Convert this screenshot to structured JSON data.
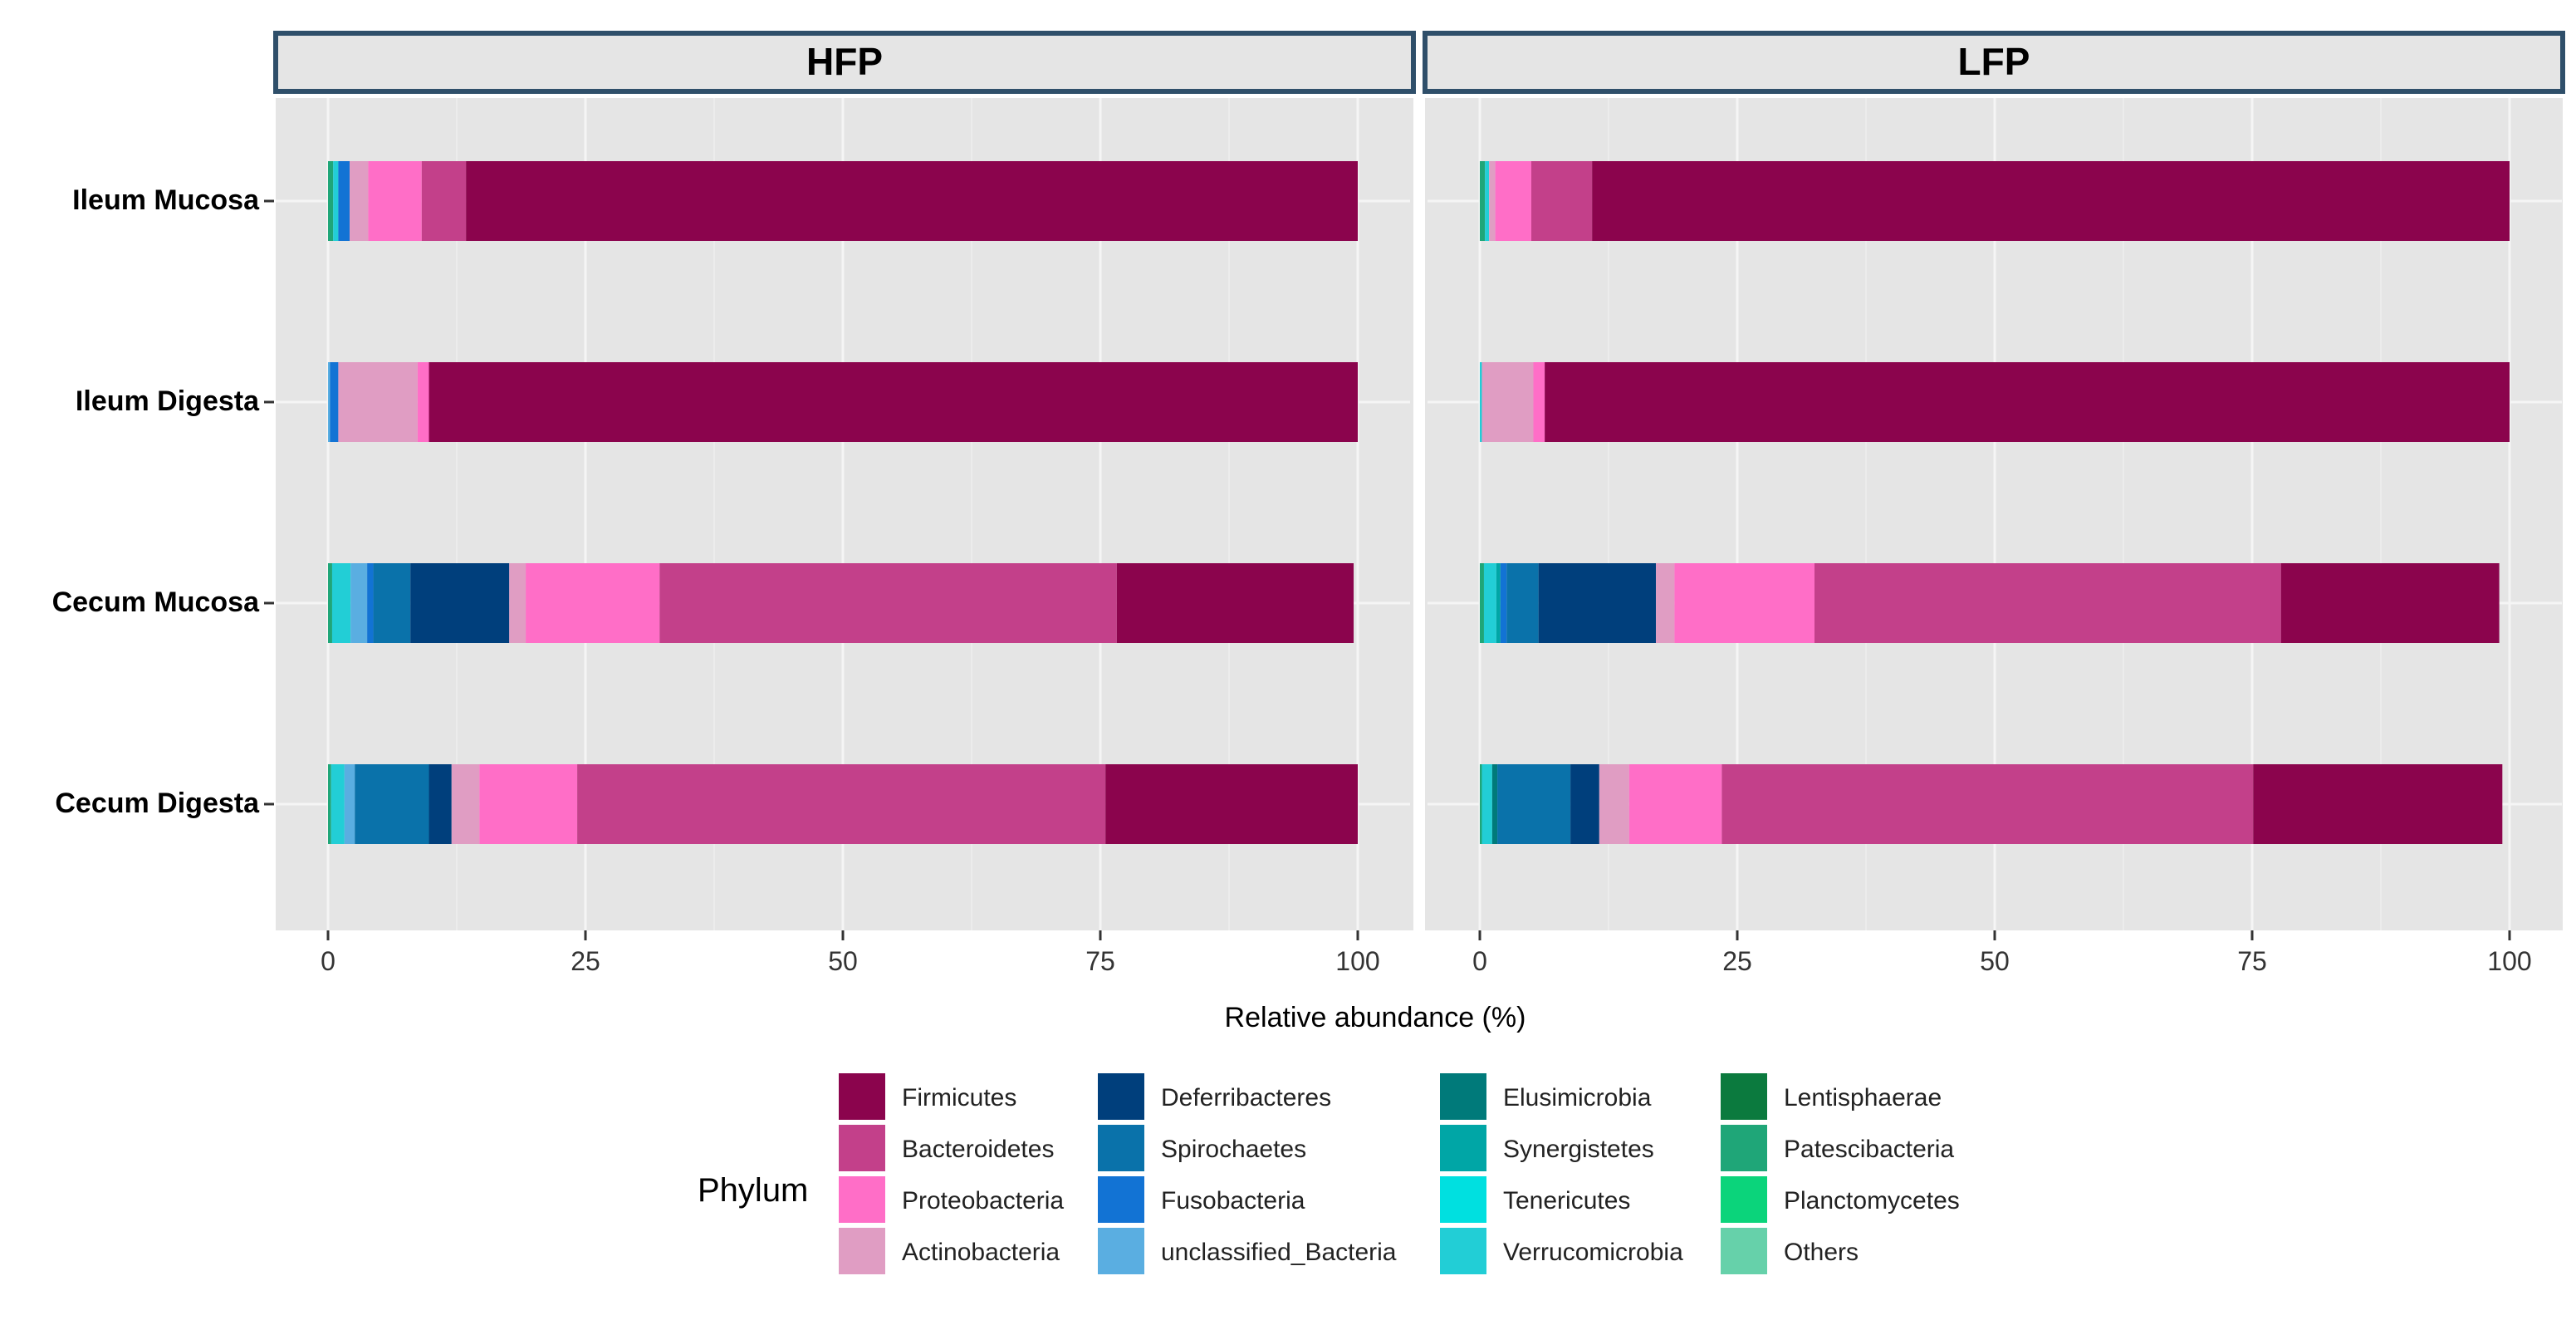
{
  "chart_data": {
    "type": "bar",
    "orientation": "horizontal",
    "stacked": true,
    "facets": [
      "HFP",
      "LFP"
    ],
    "categories": [
      "Ileum Mucosa",
      "Ileum Digesta",
      "Cecum Mucosa",
      "Cecum Digesta"
    ],
    "xlabel": "Relative abundance (%)",
    "xlim": [
      0,
      100
    ],
    "xticks": [
      0,
      25,
      50,
      75,
      100
    ],
    "legend_title": "Phylum",
    "legend_position": "bottom",
    "series": [
      {
        "name": "Firmicutes",
        "color": "#8B044D",
        "HFP": [
          86.6,
          90.2,
          23.0,
          24.5
        ],
        "LFP": [
          89.1,
          93.7,
          21.2,
          24.2
        ]
      },
      {
        "name": "Bacteroidetes",
        "color": "#C3408A",
        "HFP": [
          4.3,
          0.0,
          44.4,
          51.3
        ],
        "LFP": [
          5.9,
          0.0,
          45.3,
          51.6
        ]
      },
      {
        "name": "Proteobacteria",
        "color": "#FF6EC7",
        "HFP": [
          5.2,
          1.1,
          13.0,
          9.5
        ],
        "LFP": [
          3.5,
          1.1,
          13.6,
          9.0
        ]
      },
      {
        "name": "Actinobacteria",
        "color": "#E09DC3",
        "HFP": [
          1.8,
          7.7,
          1.6,
          2.7
        ],
        "LFP": [
          0.6,
          5.0,
          1.8,
          2.9
        ]
      },
      {
        "name": "Deferribacteres",
        "color": "#003F7C",
        "HFP": [
          0.0,
          0.0,
          9.6,
          2.2
        ],
        "LFP": [
          0.0,
          0.0,
          11.4,
          2.8
        ]
      },
      {
        "name": "Spirochaetes",
        "color": "#0A72AA",
        "HFP": [
          0.0,
          0.0,
          3.6,
          7.2
        ],
        "LFP": [
          0.0,
          0.0,
          3.1,
          7.1
        ]
      },
      {
        "name": "Fusobacteria",
        "color": "#1273D4",
        "HFP": [
          1.1,
          0.8,
          0.6,
          0.0
        ],
        "LFP": [
          0.0,
          0.0,
          0.6,
          0.0
        ]
      },
      {
        "name": "unclassified_Bacteria",
        "color": "#5AAEE1",
        "HFP": [
          0.0,
          0.2,
          1.6,
          1.0
        ],
        "LFP": [
          0.0,
          0.0,
          0.0,
          0.0
        ]
      },
      {
        "name": "Elusimicrobia",
        "color": "#007A7A",
        "HFP": [
          0.0,
          0.0,
          0.0,
          0.0
        ],
        "LFP": [
          0.0,
          0.0,
          0.0,
          0.5
        ]
      },
      {
        "name": "Synergistetes",
        "color": "#00A6A6",
        "HFP": [
          0.0,
          0.0,
          0.0,
          0.0
        ],
        "LFP": [
          0.0,
          0.0,
          0.4,
          0.0
        ]
      },
      {
        "name": "Tenericutes",
        "color": "#00E0E0",
        "HFP": [
          0.0,
          0.0,
          0.0,
          0.0
        ],
        "LFP": [
          0.0,
          0.0,
          0.0,
          0.0
        ]
      },
      {
        "name": "Verrucomicrobia",
        "color": "#22CED6",
        "HFP": [
          0.5,
          0.0,
          1.8,
          1.3
        ],
        "LFP": [
          0.4,
          0.2,
          1.2,
          1.0
        ]
      },
      {
        "name": "Lentisphaerae",
        "color": "#0B7A3E",
        "HFP": [
          0.0,
          0.0,
          0.0,
          0.0
        ],
        "LFP": [
          0.0,
          0.0,
          0.0,
          0.0
        ]
      },
      {
        "name": "Patescibacteria",
        "color": "#1FA678",
        "HFP": [
          0.5,
          0.0,
          0.4,
          0.3
        ],
        "LFP": [
          0.5,
          0.0,
          0.4,
          0.2
        ]
      },
      {
        "name": "Planctomycetes",
        "color": "#0BD47B",
        "HFP": [
          0.0,
          0.0,
          0.0,
          0.0
        ],
        "LFP": [
          0.0,
          0.0,
          0.0,
          0.0
        ]
      },
      {
        "name": "Others",
        "color": "#66D1AA",
        "HFP": [
          0.0,
          0.0,
          0.0,
          0.0
        ],
        "LFP": [
          0.0,
          0.0,
          0.0,
          0.0
        ]
      }
    ],
    "background_color": "#E5E5E5",
    "strip_border_color": "#2F4F6A",
    "grid": true
  }
}
